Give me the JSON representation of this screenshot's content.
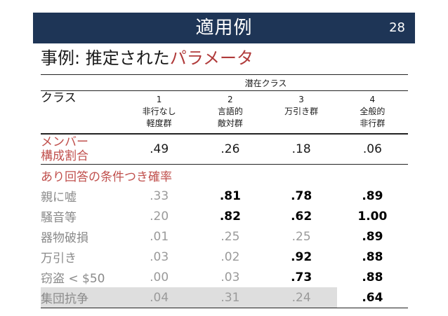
{
  "header": {
    "title": "適用例",
    "page_number": "28"
  },
  "subtitle": {
    "prefix": "事例: 推定された",
    "accent": "パラメータ"
  },
  "table": {
    "latent_header": "潜在クラス",
    "class_label": "クラス",
    "classes": [
      {
        "num": "1",
        "line1": "非行なし",
        "line2": "軽度群"
      },
      {
        "num": "2",
        "line1": "言語的",
        "line2": "敵対群"
      },
      {
        "num": "3",
        "line1": "万引き群",
        "line2": ""
      },
      {
        "num": "4",
        "line1": "全般的",
        "line2": "非行群"
      }
    ],
    "membership": {
      "label_line1": "メンバー",
      "label_line2": "構成割合",
      "values": [
        ".49",
        ".26",
        ".18",
        ".06"
      ]
    },
    "section_label": "あり回答の条件つき確率",
    "rows": [
      {
        "label": "親に嘘",
        "values": [
          ".33",
          ".81",
          ".78",
          ".89"
        ],
        "bold": [
          false,
          true,
          true,
          true
        ]
      },
      {
        "label": "騒音等",
        "values": [
          ".20",
          ".82",
          ".62",
          "1.00"
        ],
        "bold": [
          false,
          true,
          true,
          true
        ]
      },
      {
        "label": "器物破損",
        "values": [
          ".01",
          ".25",
          ".25",
          ".89"
        ],
        "bold": [
          false,
          false,
          false,
          true
        ]
      },
      {
        "label": "万引き",
        "values": [
          ".03",
          ".02",
          ".92",
          ".88"
        ],
        "bold": [
          false,
          false,
          true,
          true
        ]
      },
      {
        "label": "窃盗 < $50",
        "values": [
          ".00",
          ".03",
          ".73",
          ".88"
        ],
        "bold": [
          false,
          false,
          true,
          true
        ]
      },
      {
        "label": "集団抗争",
        "values": [
          ".04",
          ".31",
          ".24",
          ".64"
        ],
        "bold": [
          false,
          false,
          false,
          true
        ]
      }
    ]
  },
  "colors": {
    "title_bg": "#1e3556",
    "accent": "#c0504d",
    "muted": "#9a9a9a"
  }
}
